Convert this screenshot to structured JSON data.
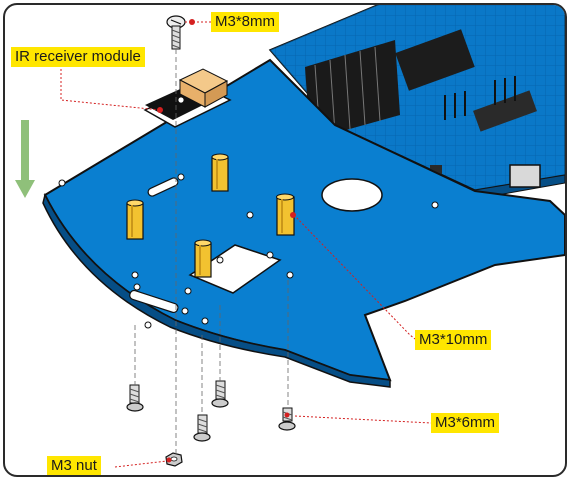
{
  "callouts": {
    "ir_receiver": "IR receiver module",
    "m3_8mm": "M3*8mm",
    "m3_10mm": "M3*10mm",
    "m3_6mm": "M3*6mm",
    "m3_nut": "M3 nut"
  },
  "colors": {
    "chassis_blue": "#0a7fd0",
    "callout_yellow": "#ffe600",
    "leader_red": "#d42020",
    "standoff_gold": "#f2c230",
    "arrow_green": "#8fc07a"
  },
  "icons": {
    "direction": "down-arrow-icon"
  }
}
